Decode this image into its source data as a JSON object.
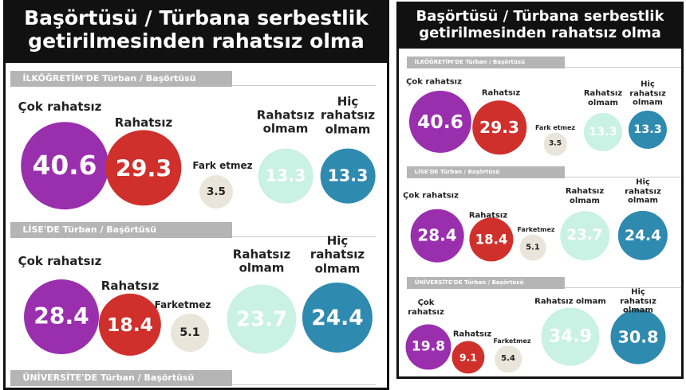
{
  "colors": {
    "cok_rahatsiz": "#9a2fae",
    "rahatsiz": "#d0302c",
    "fark_etmez": "#e9e5db",
    "rahatsiz_olmam": "#c9f1e4",
    "hic_rahatsiz_olmam": "#2f8ab0"
  },
  "chart_data": [
    {
      "type": "bubble",
      "title": "Başörtüsü / Türbana serbestlik getirilmesinden rahatsız olma",
      "categories": [
        "Çok rahatsız",
        "Rahatsız",
        "Fark etmez",
        "Rahatsız olmam",
        "Hiç rahatsız olmam"
      ],
      "series": [
        {
          "name": "İLKÖĞRETİM'DE Türban / Başörtüsü",
          "labels": [
            "Çok rahatsız",
            "Rahatsız",
            "Fark etmez",
            "Rahatsız\nolmam",
            "Hiç\nrahatsız\nolmam"
          ],
          "values": [
            "40.6",
            "29.3",
            "3.5",
            "13.3",
            "13.3"
          ]
        },
        {
          "name": "LİSE'DE Türban / Başörtüsü",
          "labels": [
            "Çok rahatsız",
            "Rahatsız",
            "Farketmez",
            "Rahatsız\nolmam",
            "Hiç rahatsız\nolmam"
          ],
          "values": [
            "28.4",
            "18.4",
            "5.1",
            "23.7",
            "24.4"
          ]
        },
        {
          "name": "ÜNİVERSİTE'DE Türban / Başörtüsü",
          "labels": [],
          "values": []
        }
      ]
    },
    {
      "type": "bubble",
      "title": "Başörtüsü / Türbana serbestlik getirilmesinden rahatsız olma",
      "categories": [
        "Çok rahatsız",
        "Rahatsız",
        "Fark etmez",
        "Rahatsız olmam",
        "Hiç rahatsız olmam"
      ],
      "series": [
        {
          "name": "İLKÖĞRETİM'DE Türban / Başörtüsü",
          "labels": [
            "Çok rahatsız",
            "Rahatsız",
            "Fark etmez",
            "Rahatsız\nolmam",
            "Hiç\nrahatsız\nolmam"
          ],
          "values": [
            "40.6",
            "29.3",
            "3.5",
            "13.3",
            "13.3"
          ]
        },
        {
          "name": "LİSE'DE Türban / Başörtüsü",
          "labels": [
            "Çok rahatsız",
            "Rahatsız",
            "Farketmez",
            "Rahatsız\nolmam",
            "Hiç rahatsız\nolmam"
          ],
          "values": [
            "28.4",
            "18.4",
            "5.1",
            "23.7",
            "24.4"
          ]
        },
        {
          "name": "ÜNİVERSİTE'DE Türban / Başörtüsü",
          "labels": [
            "Çok\nrahatsız",
            "Rahatsız",
            "Farketmez",
            "Rahatsız olmam",
            "Hiç rahatsız\nolmam"
          ],
          "values": [
            "19.8",
            "9.1",
            "5.4",
            "34.9",
            "30.8"
          ]
        }
      ]
    }
  ]
}
